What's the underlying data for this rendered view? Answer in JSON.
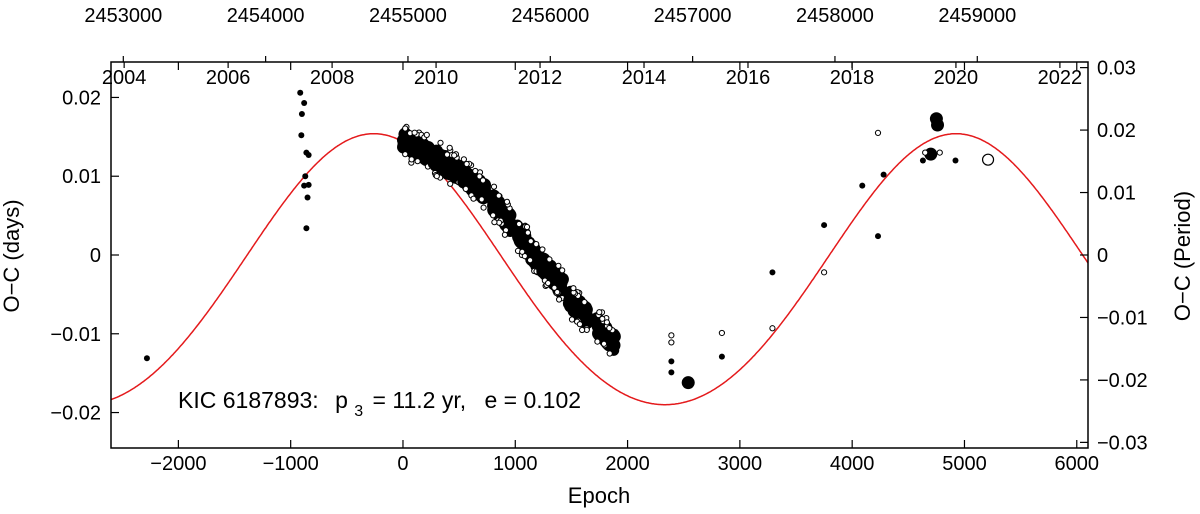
{
  "chart_data": {
    "type": "scatter",
    "annotation": {
      "star": "KIC 6187893:",
      "p_label": "p",
      "p_sub": "3",
      "p_value": "= 11.2 yr,",
      "e_text": "e = 0.102"
    },
    "xlabel": "Epoch",
    "ylabel_left": "O−C (days)",
    "ylabel_right": "O−C (Period)",
    "xlim": [
      -2600,
      6100
    ],
    "ylim": [
      -0.0245,
      0.0245
    ],
    "right_ylim": [
      -0.0309,
      0.0309
    ],
    "x_ticks": [
      -2000,
      -1000,
      0,
      1000,
      2000,
      3000,
      4000,
      5000,
      6000
    ],
    "x_tick_labels": [
      "−2000",
      "−1000",
      "0",
      "1000",
      "2000",
      "3000",
      "4000",
      "5000",
      "6000"
    ],
    "y_ticks": [
      -0.02,
      -0.01,
      0,
      0.01,
      0.02
    ],
    "y_tick_labels": [
      "−0.02",
      "−0.01",
      "0",
      "0.01",
      "0.02"
    ],
    "right_y_ticks": [
      -0.03,
      -0.02,
      -0.01,
      0,
      0.01,
      0.02,
      0.03
    ],
    "right_y_tick_labels": [
      "−0.03",
      "−0.02",
      "−0.01",
      "0",
      "0.01",
      "0.02",
      "0.03"
    ],
    "top_years": [
      2004,
      2006,
      2008,
      2010,
      2012,
      2014,
      2016,
      2018,
      2020,
      2022
    ],
    "top_year_labels": [
      "2004",
      "2006",
      "2008",
      "2010",
      "2012",
      "2014",
      "2016",
      "2018",
      "2020",
      "2022"
    ],
    "top_jd": [
      2453000,
      2454000,
      2455000,
      2456000,
      2457000,
      2458000,
      2459000
    ],
    "top_jd_labels": [
      "2453000",
      "2454000",
      "2455000",
      "2456000",
      "2457000",
      "2458000",
      "2459000"
    ],
    "calibration": {
      "epoch0_jd": 2454965,
      "period_days": 0.789,
      "jd_at_year2004": 2453006,
      "days_per_year": 365.25
    },
    "model_curve": {
      "color": "#e41a1c",
      "amplitude": 0.0172,
      "offset": -0.0018,
      "period_epochs": 5185,
      "phase_epoch_max": -260,
      "eccentricity": 0.102
    },
    "kepler_segments": [
      {
        "x0": 0,
        "x1": 230,
        "y0": 0.0146,
        "y1": 0.0128
      },
      {
        "x0": 270,
        "x1": 500,
        "y0": 0.0125,
        "y1": 0.0105
      },
      {
        "x0": 540,
        "x1": 730,
        "y0": 0.01,
        "y1": 0.008
      },
      {
        "x0": 800,
        "x1": 960,
        "y0": 0.0068,
        "y1": 0.004
      },
      {
        "x0": 1020,
        "x1": 1210,
        "y0": 0.003,
        "y1": -0.001
      },
      {
        "x0": 1240,
        "x1": 1420,
        "y0": -0.0012,
        "y1": -0.004
      },
      {
        "x0": 1480,
        "x1": 1640,
        "y0": -0.0055,
        "y1": -0.0078
      },
      {
        "x0": 1730,
        "x1": 1880,
        "y0": -0.009,
        "y1": -0.0112
      }
    ],
    "primary_minima": [
      [
        -2280,
        -0.0131
      ],
      [
        -915,
        0.0206
      ],
      [
        -880,
        0.0193
      ],
      [
        -900,
        0.0179
      ],
      [
        -905,
        0.0152
      ],
      [
        -860,
        0.013
      ],
      [
        -840,
        0.0127
      ],
      [
        -870,
        0.01
      ],
      [
        -840,
        0.0089
      ],
      [
        -880,
        0.0088
      ],
      [
        -850,
        0.0073
      ],
      [
        -860,
        0.0034
      ],
      [
        2390,
        -0.0135
      ],
      [
        2390,
        -0.0149
      ],
      [
        2840,
        -0.0129
      ],
      [
        3290,
        -0.0022
      ],
      [
        3750,
        0.0038
      ],
      [
        4230,
        0.0024
      ],
      [
        4090,
        0.0088
      ],
      [
        4280,
        0.0102
      ],
      [
        4630,
        0.012
      ],
      [
        4920,
        0.012
      ]
    ],
    "big_primary_minima": [
      [
        2540,
        -0.0162
      ],
      [
        4700,
        0.0128
      ],
      [
        4750,
        0.0173
      ],
      [
        4760,
        0.0165
      ]
    ],
    "secondary_minima": [
      [
        2390,
        -0.0102
      ],
      [
        2390,
        -0.0111
      ],
      [
        2840,
        -0.0099
      ],
      [
        3290,
        -0.0093
      ],
      [
        3750,
        -0.0022
      ],
      [
        4230,
        0.0155
      ],
      [
        4650,
        0.013
      ],
      [
        4780,
        0.013
      ]
    ],
    "big_secondary_minima": [
      [
        5210,
        0.0121
      ]
    ]
  }
}
